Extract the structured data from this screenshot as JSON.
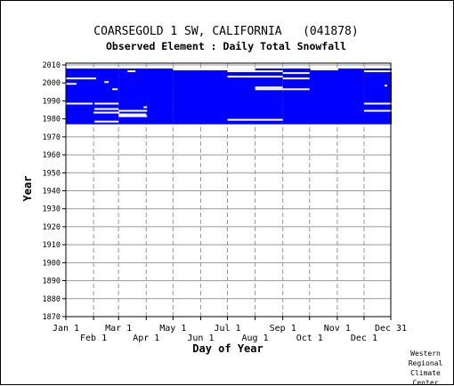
{
  "chart_data": {
    "type": "heatmap",
    "title": "COARSEGOLD 1 SW, CALIFORNIA   (041878)",
    "subtitle": "Observed Element : Daily Total Snowfall",
    "xlabel": "Day of Year",
    "ylabel": "Year",
    "x_ticks_top_row": [
      "Jan 1",
      "Mar 1",
      "May 1",
      "Jul 1",
      "Sep 1",
      "Nov 1",
      "Dec 31"
    ],
    "x_ticks_bottom_row": [
      "Feb 1",
      "Apr 1",
      "Jun 1",
      "Aug 1",
      "Oct 1",
      "Dec 1"
    ],
    "x_tick_days_top": [
      1,
      60,
      121,
      182,
      244,
      305,
      365
    ],
    "x_tick_days_bottom": [
      32,
      91,
      152,
      213,
      274,
      335
    ],
    "xlim": [
      1,
      365
    ],
    "ylim": [
      1870,
      2011
    ],
    "y_ticks": [
      1870,
      1880,
      1890,
      1900,
      1910,
      1920,
      1930,
      1940,
      1950,
      1960,
      1970,
      1980,
      1990,
      2000,
      2010
    ],
    "grid": true,
    "data_color": "#0000ff",
    "coverage_blocks": [
      {
        "day_start": 1,
        "day_end": 59,
        "year_start": 1977,
        "year_end": 2007
      },
      {
        "day_start": 60,
        "day_end": 120,
        "year_start": 1977,
        "year_end": 2007
      },
      {
        "day_start": 121,
        "day_end": 181,
        "year_start": 1977,
        "year_end": 2006
      },
      {
        "day_start": 182,
        "day_end": 243,
        "year_start": 1977,
        "year_end": 2007
      },
      {
        "day_start": 244,
        "day_end": 334,
        "year_start": 1977,
        "year_end": 2007
      },
      {
        "day_start": 335,
        "day_end": 365,
        "year_start": 1977,
        "year_end": 2007
      }
    ],
    "missing_segments": [
      {
        "year": 2002,
        "day_start": 1,
        "day_end": 34
      },
      {
        "year": 1999,
        "day_start": 1,
        "day_end": 12
      },
      {
        "year": 1988,
        "day_start": 1,
        "day_end": 30
      },
      {
        "year": 1988,
        "day_start": 33,
        "day_end": 59
      },
      {
        "year": 1985,
        "day_start": 33,
        "day_end": 59
      },
      {
        "year": 1983,
        "day_start": 32,
        "day_end": 60
      },
      {
        "year": 1982,
        "day_start": 60,
        "day_end": 90
      },
      {
        "year": 1978,
        "day_start": 33,
        "day_end": 59
      },
      {
        "year": 2006,
        "day_start": 70,
        "day_end": 78
      },
      {
        "year": 2000,
        "day_start": 44,
        "day_end": 48
      },
      {
        "year": 1996,
        "day_start": 53,
        "day_end": 58
      },
      {
        "year": 1986,
        "day_start": 88,
        "day_end": 91
      },
      {
        "year": 1984,
        "day_start": 60,
        "day_end": 91
      },
      {
        "year": 1981,
        "day_start": 60,
        "day_end": 91
      },
      {
        "year": 2007,
        "day_start": 182,
        "day_end": 212
      },
      {
        "year": 2006,
        "day_start": 182,
        "day_end": 243
      },
      {
        "year": 2007,
        "day_start": 275,
        "day_end": 305
      },
      {
        "year": 2005,
        "day_start": 244,
        "day_end": 273
      },
      {
        "year": 2003,
        "day_start": 213,
        "day_end": 243
      },
      {
        "year": 2003,
        "day_start": 182,
        "day_end": 212
      },
      {
        "year": 2002,
        "day_start": 244,
        "day_end": 273
      },
      {
        "year": 1997,
        "day_start": 213,
        "day_end": 243
      },
      {
        "year": 1996,
        "day_start": 213,
        "day_end": 243
      },
      {
        "year": 1996,
        "day_start": 244,
        "day_end": 273
      },
      {
        "year": 1979,
        "day_start": 182,
        "day_end": 243
      },
      {
        "year": 2006,
        "day_start": 335,
        "day_end": 365
      },
      {
        "year": 1998,
        "day_start": 358,
        "day_end": 360
      },
      {
        "year": 1988,
        "day_start": 335,
        "day_end": 365
      },
      {
        "year": 1984,
        "day_start": 335,
        "day_end": 365
      }
    ]
  },
  "credit": {
    "line1": "Western",
    "line2": "Regional",
    "line3": "Climate",
    "line4": "Center"
  }
}
